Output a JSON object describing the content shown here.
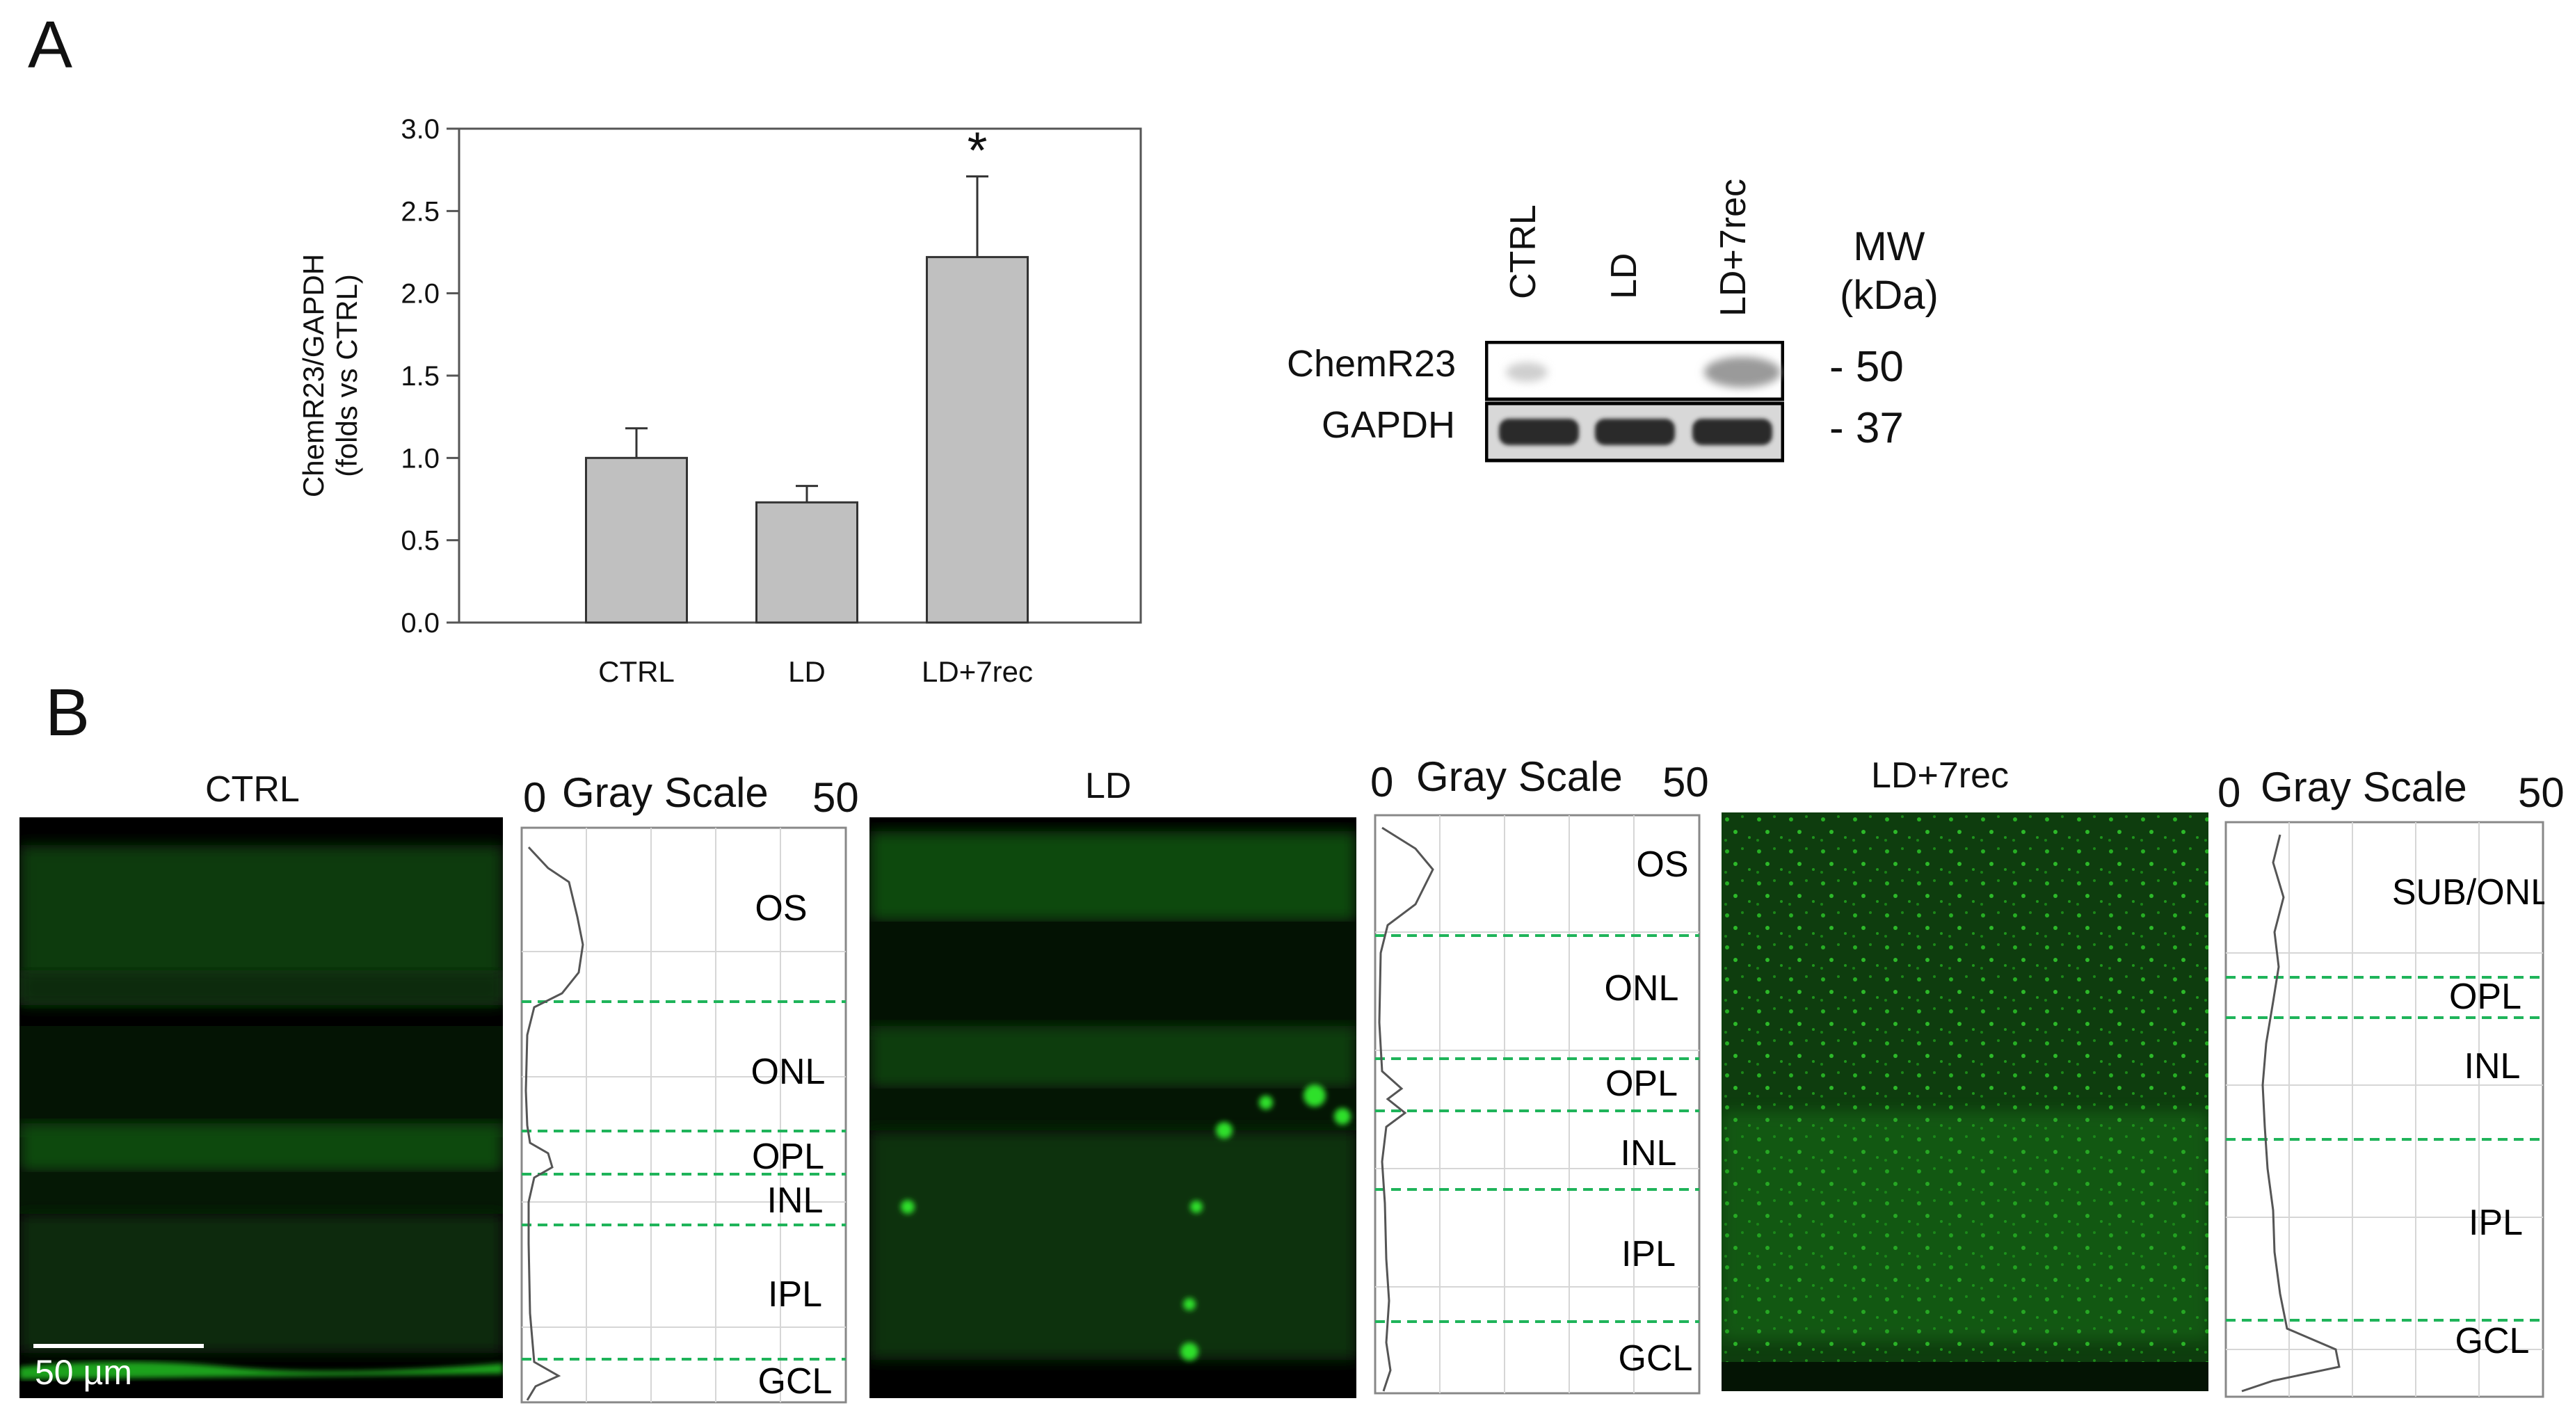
{
  "panels": {
    "a_label": "A",
    "b_label": "B"
  },
  "chart_data": {
    "type": "bar",
    "categories": [
      "CTRL",
      "LD",
      "LD+7rec"
    ],
    "values": [
      1.0,
      0.73,
      2.22
    ],
    "errors": [
      0.18,
      0.1,
      0.49
    ],
    "ylabel_line1": "ChemR23/GAPDH",
    "ylabel_line2": "(folds vs CTRL)",
    "ylim": [
      0,
      3.0
    ],
    "yticks": [
      "0.0",
      "0.5",
      "1.0",
      "1.5",
      "2.0",
      "2.5",
      "3.0"
    ],
    "significance": {
      "category": "LD+7rec",
      "marker": "*"
    },
    "bar_color": "#c0c0c0"
  },
  "blot": {
    "lanes": [
      "CTRL",
      "LD",
      "LD+7rec"
    ],
    "rows": [
      "ChemR23",
      "GAPDH"
    ],
    "mw_title_line1": "MW",
    "mw_title_line2": "(kDa)",
    "mw_marks": [
      "- 50",
      "- 37"
    ]
  },
  "panel_b": {
    "conditions": [
      {
        "title": "CTRL",
        "scale_min": "0",
        "scale_title": "Gray Scale",
        "scale_max": "50",
        "layers": [
          "OS",
          "ONL",
          "OPL",
          "INL",
          "IPL",
          "GCL"
        ],
        "scalebar": "50 µm"
      },
      {
        "title": "LD",
        "scale_min": "0",
        "scale_title": "Gray Scale",
        "scale_max": "50",
        "layers": [
          "OS",
          "ONL",
          "OPL",
          "INL",
          "IPL",
          "GCL"
        ]
      },
      {
        "title": "LD+7rec",
        "scale_min": "0",
        "scale_title": "Gray Scale",
        "scale_max": "50",
        "layers": [
          "SUB/ONL",
          "OPL",
          "INL",
          "IPL",
          "GCL"
        ]
      }
    ],
    "fluorescence_color": "#22c01e",
    "divider_color": "#1fb45a"
  }
}
